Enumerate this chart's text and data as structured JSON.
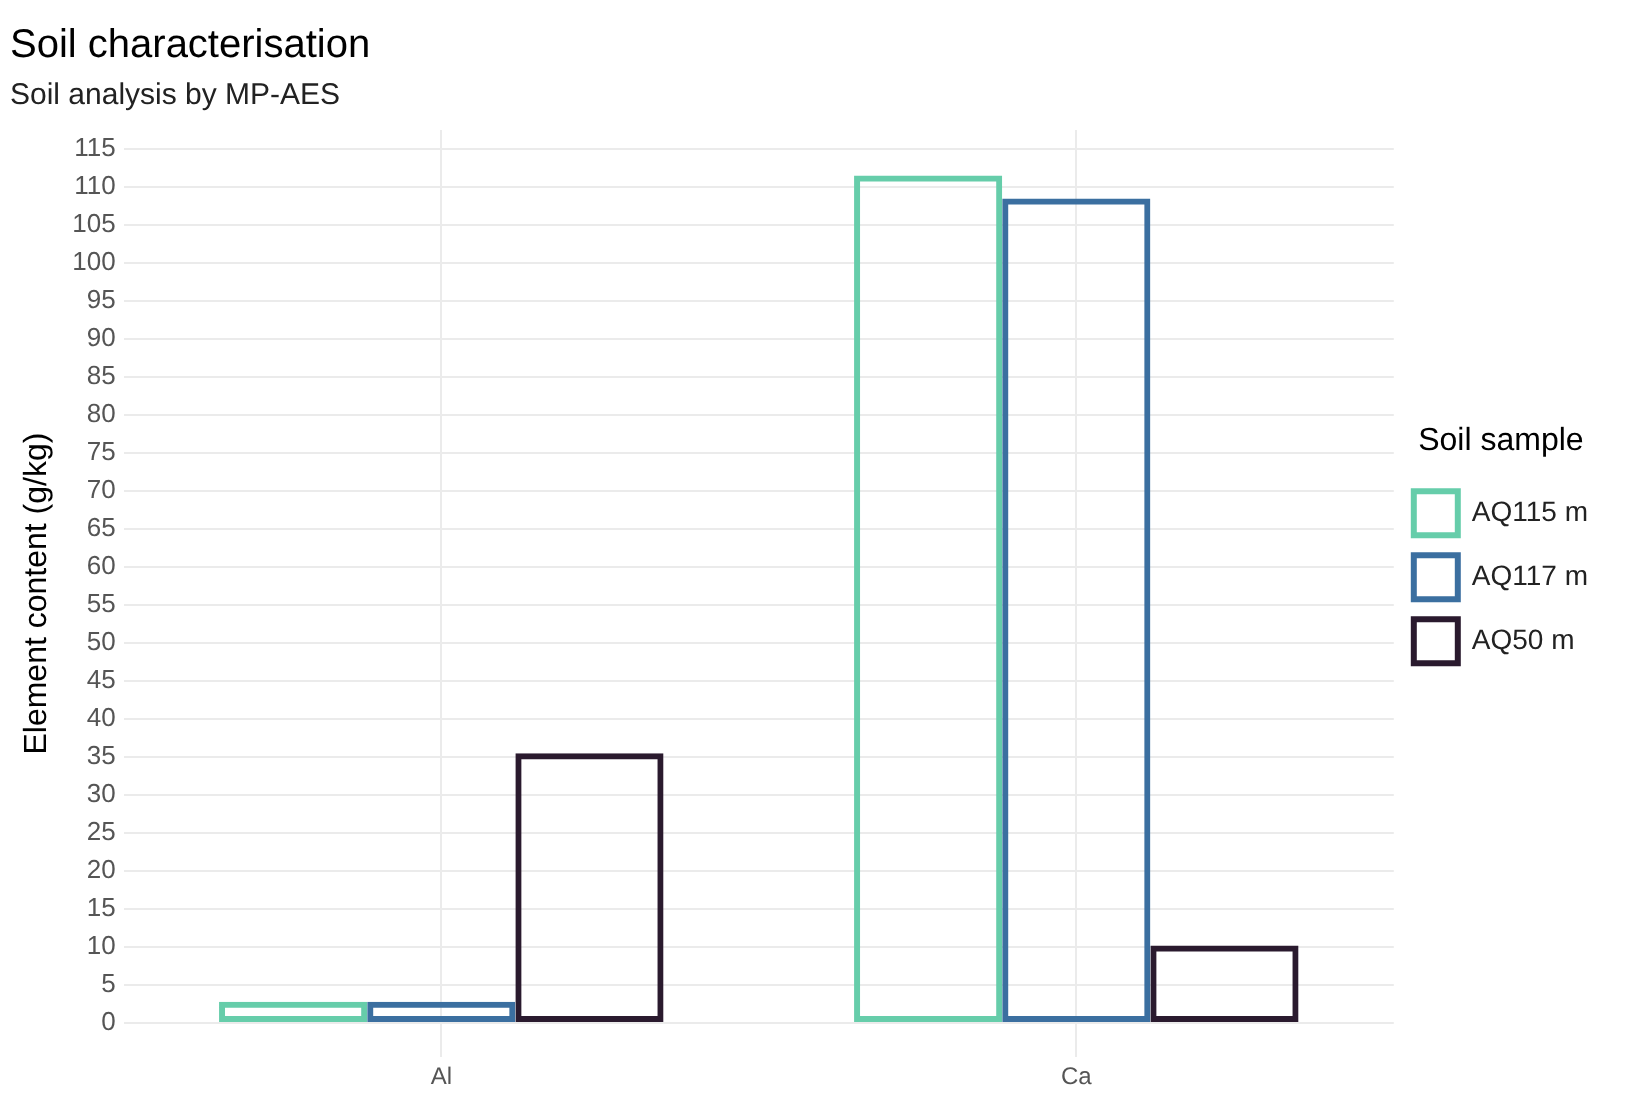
{
  "chart_data": {
    "type": "bar",
    "title": "Soil characterisation",
    "subtitle": "Soil analysis by MP-AES",
    "ylabel": "Element content (g/kg)",
    "legend_title": "Soil sample",
    "categories": [
      "Al",
      "Ca"
    ],
    "series": [
      {
        "name": "AQ115 m",
        "color": "#66cdaa",
        "values": [
          2.8,
          111.5
        ]
      },
      {
        "name": "AQ117 m",
        "color": "#3b6fa0",
        "values": [
          2.8,
          108.5
        ]
      },
      {
        "name": "AQ50 m",
        "color": "#2a1a2e",
        "values": [
          35.5,
          10.2
        ]
      }
    ],
    "ylim": [
      -4.5,
      117.5
    ],
    "yticks": [
      0,
      5,
      10,
      15,
      20,
      25,
      30,
      35,
      40,
      45,
      50,
      55,
      60,
      65,
      70,
      75,
      80,
      85,
      90,
      95,
      100,
      105,
      110,
      115
    ],
    "grid": true,
    "legend": "right"
  }
}
